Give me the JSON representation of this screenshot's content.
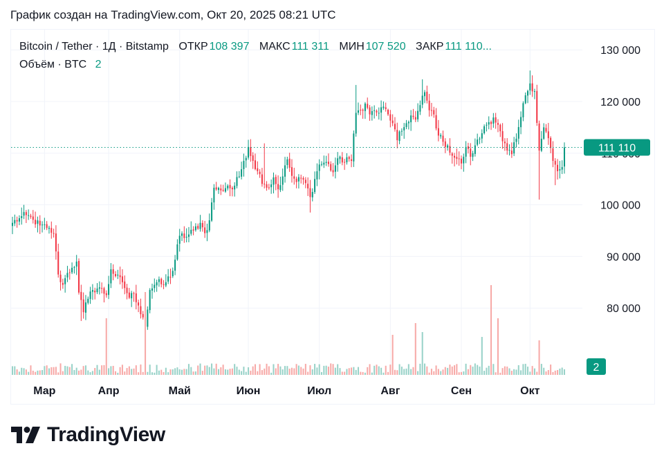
{
  "caption": "График создан на TradingView.com, Окт 20, 2025 08:21 UTC",
  "legend": {
    "symbol": "Bitcoin / Tether · 1Д · Bitstamp",
    "open_label": "ОТКР",
    "open_value": "108 397",
    "high_label": "МАКС",
    "high_value": "111 311",
    "low_label": "МИН",
    "low_value": "107 520",
    "close_label": "ЗАКР",
    "close_value": "111 110...",
    "volume_label": "Объём · BTC",
    "volume_value": "2"
  },
  "price_badge": "111 110",
  "volume_badge": "2",
  "logo_text": "TradingView",
  "colors": {
    "up": "#089981",
    "down": "#f23645",
    "up_volume": "#98d2c8",
    "down_volume": "#f7a9a7",
    "badge": "#089981"
  },
  "chart_data": {
    "type": "candlestick",
    "interval": "1D",
    "y_ticks": [
      80000,
      90000,
      100000,
      110000,
      120000,
      130000
    ],
    "y_tick_labels": [
      "80 000",
      "90 000",
      "100 000",
      "110 000",
      "120 000",
      "130 000"
    ],
    "y_range": [
      68000,
      131500
    ],
    "x_labels": [
      "Мар",
      "Апр",
      "Май",
      "Июн",
      "Июл",
      "Авг",
      "Сен",
      "Окт"
    ],
    "x_label_days": [
      14,
      42,
      73,
      103,
      134,
      165,
      196,
      226
    ],
    "last_price": 111110,
    "key_closes": [
      [
        0,
        96500
      ],
      [
        3,
        97400
      ],
      [
        6,
        98000
      ],
      [
        9,
        97100
      ],
      [
        12,
        96000
      ],
      [
        15,
        95500
      ],
      [
        18,
        94500
      ],
      [
        20,
        86500
      ],
      [
        22,
        84500
      ],
      [
        24,
        86800
      ],
      [
        26,
        87800
      ],
      [
        28,
        89000
      ],
      [
        29,
        83000
      ],
      [
        31,
        79200
      ],
      [
        33,
        81800
      ],
      [
        35,
        83500
      ],
      [
        38,
        84000
      ],
      [
        41,
        82500
      ],
      [
        43,
        87500
      ],
      [
        45,
        86200
      ],
      [
        48,
        85000
      ],
      [
        51,
        82000
      ],
      [
        53,
        82800
      ],
      [
        55,
        80500
      ],
      [
        57,
        78200
      ],
      [
        58,
        76500
      ],
      [
        60,
        83500
      ],
      [
        63,
        85000
      ],
      [
        66,
        84500
      ],
      [
        67,
        85000
      ],
      [
        70,
        87200
      ],
      [
        73,
        94000
      ],
      [
        76,
        93800
      ],
      [
        79,
        95000
      ],
      [
        82,
        96500
      ],
      [
        84,
        94500
      ],
      [
        86,
        97000
      ],
      [
        88,
        103300
      ],
      [
        91,
        102800
      ],
      [
        94,
        103700
      ],
      [
        96,
        103000
      ],
      [
        99,
        105500
      ],
      [
        101,
        108500
      ],
      [
        103,
        111200
      ],
      [
        105,
        108500
      ],
      [
        107,
        106500
      ],
      [
        110,
        104000
      ],
      [
        112,
        103300
      ],
      [
        114,
        105300
      ],
      [
        116,
        103000
      ],
      [
        118,
        105500
      ],
      [
        120,
        108800
      ],
      [
        122,
        105600
      ],
      [
        124,
        104400
      ],
      [
        126,
        105200
      ],
      [
        128,
        104200
      ],
      [
        130,
        101500
      ],
      [
        132,
        105000
      ],
      [
        134,
        107800
      ],
      [
        137,
        108300
      ],
      [
        140,
        106300
      ],
      [
        142,
        109000
      ],
      [
        144,
        108200
      ],
      [
        146,
        109200
      ],
      [
        148,
        108500
      ],
      [
        150,
        117800
      ],
      [
        152,
        118400
      ],
      [
        154,
        119600
      ],
      [
        156,
        117500
      ],
      [
        158,
        118300
      ],
      [
        160,
        117800
      ],
      [
        162,
        119000
      ],
      [
        164,
        117500
      ],
      [
        166,
        115800
      ],
      [
        168,
        112500
      ],
      [
        170,
        114300
      ],
      [
        172,
        115800
      ],
      [
        174,
        117300
      ],
      [
        176,
        116500
      ],
      [
        178,
        119300
      ],
      [
        180,
        121800
      ],
      [
        182,
        118300
      ],
      [
        184,
        117500
      ],
      [
        186,
        113400
      ],
      [
        188,
        112200
      ],
      [
        190,
        111500
      ],
      [
        192,
        109500
      ],
      [
        194,
        108900
      ],
      [
        196,
        108000
      ],
      [
        198,
        111200
      ],
      [
        200,
        109300
      ],
      [
        202,
        111500
      ],
      [
        204,
        112800
      ],
      [
        206,
        115200
      ],
      [
        208,
        116000
      ],
      [
        210,
        116900
      ],
      [
        212,
        115500
      ],
      [
        214,
        112300
      ],
      [
        216,
        110500
      ],
      [
        218,
        109800
      ],
      [
        220,
        112800
      ],
      [
        222,
        117000
      ],
      [
        224,
        121200
      ],
      [
        226,
        123500
      ],
      [
        228,
        122000
      ],
      [
        230,
        110500
      ],
      [
        232,
        115000
      ],
      [
        234,
        112900
      ],
      [
        236,
        108500
      ],
      [
        238,
        106500
      ],
      [
        240,
        107300
      ],
      [
        241,
        111110
      ]
    ],
    "wicks": [
      {
        "day": 30,
        "low": 77500
      },
      {
        "day": 58,
        "low": 75000
      },
      {
        "day": 88,
        "high": 104000
      },
      {
        "day": 110,
        "high": 111900
      },
      {
        "day": 130,
        "low": 98500
      },
      {
        "day": 150,
        "high": 123200
      },
      {
        "day": 179,
        "high": 124300
      },
      {
        "day": 226,
        "high": 126000
      },
      {
        "day": 230,
        "low": 101000
      },
      {
        "day": 237,
        "low": 103800
      }
    ],
    "volume_spikes": [
      {
        "day": 41,
        "value": 82
      },
      {
        "day": 58,
        "value": 120
      },
      {
        "day": 166,
        "value": 58
      },
      {
        "day": 176,
        "value": 75
      },
      {
        "day": 179,
        "value": 62
      },
      {
        "day": 205,
        "value": 55
      },
      {
        "day": 209,
        "value": 130
      },
      {
        "day": 212,
        "value": 82
      },
      {
        "day": 230,
        "value": 50
      }
    ]
  }
}
